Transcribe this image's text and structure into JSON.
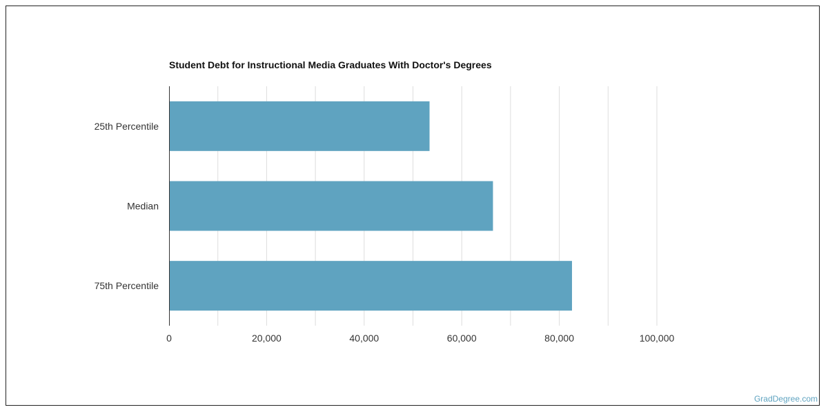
{
  "chart_data": {
    "type": "bar",
    "orientation": "horizontal",
    "title": "Student Debt for Instructional Media Graduates With Doctor's Degrees",
    "categories": [
      "25th Percentile",
      "Median",
      "75th Percentile"
    ],
    "values": [
      53400,
      66400,
      82600
    ],
    "xlim": [
      0,
      100000
    ],
    "x_ticks": [
      "0",
      "20,000",
      "40,000",
      "60,000",
      "80,000",
      "100,000"
    ],
    "xlabel": "",
    "ylabel": "",
    "grid": true,
    "bar_color": "#5fa3c0"
  },
  "source_label": "GradDegree.com"
}
